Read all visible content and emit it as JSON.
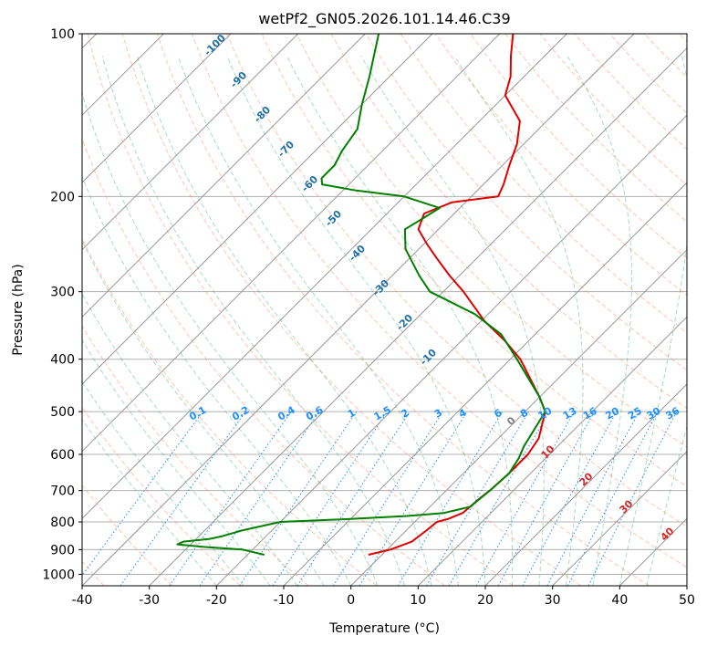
{
  "chart_data": {
    "type": "line",
    "title": "wetPf2_GN05.2026.101.14.46.C39",
    "xlabel": "Temperature (°C)",
    "ylabel": "Pressure (hPa)",
    "xlim": [
      -40,
      50
    ],
    "ylim": [
      1050,
      100
    ],
    "y_scale": "log",
    "skew": true,
    "grid": true,
    "x_ticks": [
      -40,
      -30,
      -20,
      -10,
      0,
      10,
      20,
      30,
      40,
      50
    ],
    "y_ticks": [
      100,
      200,
      300,
      400,
      500,
      600,
      700,
      800,
      900,
      1000
    ],
    "series": [
      {
        "color": "#e00000",
        "points": [
          [
            920,
            -2.0
          ],
          [
            900,
            0.5
          ],
          [
            870,
            2.5
          ],
          [
            830,
            3.0
          ],
          [
            800,
            3.3
          ],
          [
            790,
            4.5
          ],
          [
            770,
            5.8
          ],
          [
            720,
            6.2
          ],
          [
            700,
            6.5
          ],
          [
            650,
            6.8
          ],
          [
            600,
            6.8
          ],
          [
            560,
            6.0
          ],
          [
            500,
            3.0
          ],
          [
            470,
            0.0
          ],
          [
            400,
            -8.5
          ],
          [
            370,
            -13.5
          ],
          [
            340,
            -19.5
          ],
          [
            300,
            -27.0
          ],
          [
            280,
            -31.5
          ],
          [
            260,
            -36.0
          ],
          [
            245,
            -39.5
          ],
          [
            230,
            -43.0
          ],
          [
            215,
            -44.5
          ],
          [
            205,
            -42.0
          ],
          [
            200,
            -36.0
          ],
          [
            190,
            -37.0
          ],
          [
            175,
            -39.0
          ],
          [
            160,
            -41.0
          ],
          [
            145,
            -44.0
          ],
          [
            130,
            -50.0
          ],
          [
            120,
            -52.0
          ],
          [
            110,
            -55.0
          ],
          [
            100,
            -58.0
          ]
        ]
      },
      {
        "color": "#008000",
        "points": [
          [
            920,
            -17.5
          ],
          [
            910,
            -19.5
          ],
          [
            900,
            -21.5
          ],
          [
            890,
            -27.5
          ],
          [
            880,
            -32.0
          ],
          [
            870,
            -31.5
          ],
          [
            860,
            -28.0
          ],
          [
            850,
            -26.5
          ],
          [
            830,
            -24.5
          ],
          [
            800,
            -20.0
          ],
          [
            790,
            -10.0
          ],
          [
            780,
            -2.0
          ],
          [
            770,
            3.0
          ],
          [
            750,
            6.0
          ],
          [
            700,
            6.5
          ],
          [
            650,
            6.8
          ],
          [
            610,
            6.0
          ],
          [
            580,
            5.0
          ],
          [
            500,
            3.0
          ],
          [
            470,
            0.0
          ],
          [
            400,
            -9.0
          ],
          [
            360,
            -15.0
          ],
          [
            330,
            -22.0
          ],
          [
            300,
            -32.0
          ],
          [
            280,
            -36.0
          ],
          [
            250,
            -42.0
          ],
          [
            230,
            -45.0
          ],
          [
            220,
            -44.0
          ],
          [
            210,
            -43.0
          ],
          [
            200,
            -50.0
          ],
          [
            195,
            -58.0
          ],
          [
            190,
            -64.0
          ],
          [
            185,
            -65.0
          ],
          [
            175,
            -65.0
          ],
          [
            165,
            -66.0
          ],
          [
            150,
            -67.0
          ],
          [
            135,
            -70.0
          ],
          [
            120,
            -73.0
          ],
          [
            100,
            -78.0
          ]
        ]
      }
    ],
    "mixing_ratio_labels": [
      "0.1",
      "0.2",
      "0.4",
      "0.6",
      "1",
      "1.5",
      "2",
      "3",
      "4",
      "6",
      "8",
      "10",
      "13",
      "16",
      "20",
      "25",
      "30",
      "36"
    ],
    "dry_adiabat_labels": [
      "-100",
      "-90",
      "-80",
      "-70",
      "-60",
      "-50",
      "-40",
      "-30",
      "-20",
      "-10"
    ],
    "moist_adiabat_labels": [
      "0",
      "10",
      "20",
      "30",
      "40"
    ],
    "colors": {
      "temperature": "#e00000",
      "dewpoint": "#008000",
      "mixing_ratio": "#1e90ff",
      "dry_adiabat": "#ff7f50",
      "moist_adiabat": "#3cb371",
      "isotherm": "#999999",
      "moist_label_zero": "#808080",
      "moist_label": "#d62728"
    }
  }
}
